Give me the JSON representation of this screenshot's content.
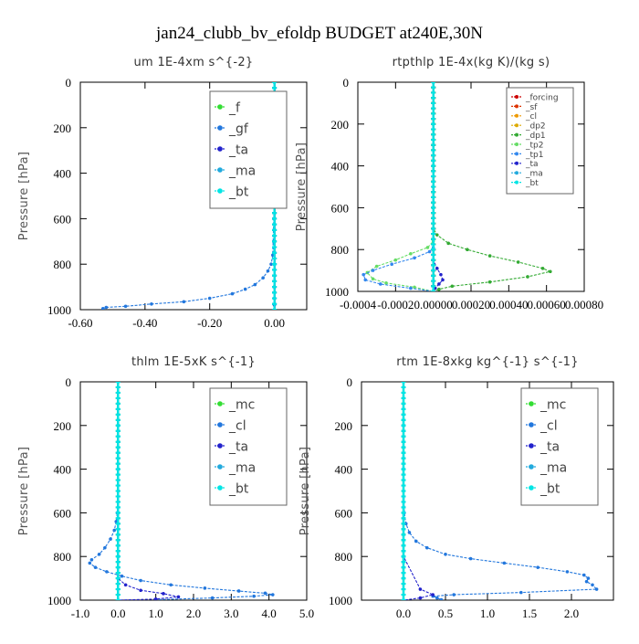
{
  "figure_title": "jan24_clubb_bv_efoldp  BUDGET at240E,30N",
  "chart_data": [
    {
      "type": "line",
      "title": "um   1E-4xm  s^{-2}",
      "ylabel": "Pressure [hPa]",
      "xlim": [
        -0.6,
        0.1
      ],
      "ylim": [
        1000,
        0
      ],
      "xticks": [
        -0.6,
        -0.4,
        -0.2,
        0.0
      ],
      "xtick_labels": [
        "-0.60",
        "-0.40",
        "-0.20",
        "0.00"
      ],
      "yticks": [
        0,
        200,
        400,
        600,
        800,
        1000
      ],
      "ytick_labels": [
        "0",
        "200",
        "400",
        "600",
        "800",
        "1000"
      ],
      "legend": "top-right",
      "legend_entries": [
        "_f",
        "_gf",
        "_ta",
        "_ma",
        "_bt"
      ],
      "series": [
        {
          "name": "_f",
          "color": "#33dd33",
          "x": [
            0,
            0,
            0,
            0,
            0,
            0,
            0,
            0,
            0,
            0,
            0
          ],
          "y": [
            0,
            100,
            200,
            300,
            400,
            500,
            600,
            700,
            800,
            900,
            1000
          ]
        },
        {
          "name": "_gf",
          "color": "#2277dd",
          "x": [
            0,
            0,
            0,
            -0.002,
            -0.005,
            -0.01,
            -0.02,
            -0.035,
            -0.06,
            -0.09,
            -0.13,
            -0.2,
            -0.28,
            -0.38,
            -0.46,
            -0.52,
            -0.53
          ],
          "y": [
            0,
            200,
            400,
            600,
            760,
            800,
            830,
            860,
            890,
            910,
            930,
            950,
            965,
            975,
            985,
            990,
            995
          ]
        },
        {
          "name": "_ta",
          "color": "#2222cc",
          "x": [
            0,
            0,
            0,
            0,
            0,
            0,
            0,
            0,
            0
          ],
          "y": [
            0,
            200,
            400,
            600,
            800,
            900,
            950,
            980,
            1000
          ]
        },
        {
          "name": "_ma",
          "color": "#22aadd",
          "x": [
            0,
            0,
            0,
            0,
            0,
            0
          ],
          "y": [
            0,
            200,
            400,
            600,
            800,
            1000
          ]
        },
        {
          "name": "_bt",
          "color": "#00e5e5",
          "x": [
            0,
            0,
            0,
            0,
            0,
            0
          ],
          "y": [
            0,
            200,
            400,
            600,
            800,
            1000
          ]
        }
      ]
    },
    {
      "type": "line",
      "title": "rtpthlp   1E-4x(kg K)/(kg s)",
      "ylabel": "Pressure [hPa]",
      "xlim": [
        -0.0004,
        0.0008
      ],
      "ylim": [
        1000,
        0
      ],
      "xticks": [
        -0.0004,
        -0.0002,
        0.0,
        0.0002,
        0.0004,
        0.0006,
        0.0008
      ],
      "xtick_labels": [
        "-0.0004",
        "-0.0002",
        "0.00000",
        "0.00020",
        "0.00040",
        "0.00060",
        "0.00080"
      ],
      "yticks": [
        0,
        200,
        400,
        600,
        800,
        1000
      ],
      "ytick_labels": [
        "0",
        "200",
        "400",
        "600",
        "800",
        "1000"
      ],
      "legend": "top-right",
      "legend_entries": [
        "_forcing",
        "_sf",
        "_cl",
        "_dp2",
        "_dp1",
        "_tp2",
        "_tp1",
        "_ta",
        "_ma",
        "_bt"
      ],
      "series": [
        {
          "name": "_forcing",
          "color": "#cc0000",
          "x": [
            0,
            0,
            0,
            0,
            0,
            0,
            0,
            0,
            0,
            0,
            0
          ],
          "y": [
            0,
            100,
            200,
            300,
            400,
            500,
            600,
            700,
            800,
            900,
            1000
          ]
        },
        {
          "name": "_sf",
          "color": "#dd3300",
          "x": [
            0,
            0,
            0,
            0,
            0,
            0
          ],
          "y": [
            0,
            200,
            400,
            600,
            800,
            1000
          ]
        },
        {
          "name": "_cl",
          "color": "#ee9900",
          "x": [
            0,
            0,
            0,
            0,
            0,
            0
          ],
          "y": [
            0,
            200,
            400,
            600,
            800,
            1000
          ]
        },
        {
          "name": "_dp2",
          "color": "#ddaa00",
          "x": [
            0,
            0,
            0,
            0,
            0,
            0
          ],
          "y": [
            0,
            200,
            400,
            600,
            800,
            1000
          ]
        },
        {
          "name": "_dp1",
          "color": "#33aa33",
          "x": [
            0,
            0,
            2e-05,
            8e-05,
            0.00018,
            0.0003,
            0.00045,
            0.00058,
            0.00062,
            0.0005,
            0.0003,
            0.0001,
            3e-05,
            0
          ],
          "y": [
            0,
            700,
            730,
            770,
            800,
            830,
            860,
            890,
            905,
            930,
            955,
            975,
            990,
            1000
          ]
        },
        {
          "name": "_tp2",
          "color": "#66dd66",
          "x": [
            0,
            0,
            -3e-05,
            -0.00012,
            -0.0002,
            -0.0003,
            -0.00035,
            -0.00032,
            -0.00025,
            -0.0001,
            0
          ],
          "y": [
            0,
            760,
            790,
            820,
            850,
            880,
            910,
            940,
            960,
            980,
            1000
          ]
        },
        {
          "name": "_tp1",
          "color": "#3388ee",
          "x": [
            0,
            0,
            -2e-05,
            -0.0001,
            -0.00022,
            -0.00032,
            -0.00037,
            -0.00036,
            -0.00028,
            -0.00012,
            0
          ],
          "y": [
            0,
            790,
            810,
            840,
            870,
            900,
            920,
            945,
            965,
            985,
            1000
          ]
        },
        {
          "name": "_ta",
          "color": "#2222cc",
          "x": [
            0,
            0,
            2e-05,
            4e-05,
            5e-05,
            3e-05,
            1e-05,
            0
          ],
          "y": [
            0,
            850,
            890,
            920,
            945,
            965,
            985,
            1000
          ]
        },
        {
          "name": "_ma",
          "color": "#22aadd",
          "x": [
            0,
            0,
            0,
            0,
            0,
            0
          ],
          "y": [
            0,
            200,
            400,
            600,
            800,
            1000
          ]
        },
        {
          "name": "_bt",
          "color": "#00e5e5",
          "x": [
            0,
            0,
            0,
            0,
            0,
            0
          ],
          "y": [
            0,
            200,
            400,
            600,
            800,
            1000
          ]
        }
      ]
    },
    {
      "type": "line",
      "title": "thlm   1E-5xK  s^{-1}",
      "ylabel": "Pressure [hPa]",
      "xlim": [
        -1.0,
        5.0
      ],
      "ylim": [
        1000,
        0
      ],
      "xticks": [
        -1.0,
        0.0,
        1.0,
        2.0,
        3.0,
        4.0,
        5.0
      ],
      "xtick_labels": [
        "-1.0",
        "0.0",
        "1.0",
        "2.0",
        "3.0",
        "4.0",
        "5.0"
      ],
      "yticks": [
        0,
        200,
        400,
        600,
        800,
        1000
      ],
      "ytick_labels": [
        "0",
        "200",
        "400",
        "600",
        "800",
        "1000"
      ],
      "legend": "top-right",
      "legend_entries": [
        "_mc",
        "_cl",
        "_ta",
        "_ma",
        "_bt"
      ],
      "series": [
        {
          "name": "_mc",
          "color": "#33dd33",
          "x": [
            0,
            0,
            0,
            0,
            0,
            0,
            0,
            0,
            0,
            0,
            0
          ],
          "y": [
            0,
            100,
            200,
            300,
            400,
            500,
            600,
            700,
            800,
            900,
            1000
          ]
        },
        {
          "name": "_cl",
          "color": "#2277dd",
          "x": [
            0,
            0,
            0,
            -0.02,
            -0.05,
            -0.1,
            -0.2,
            -0.35,
            -0.5,
            -0.7,
            -0.75,
            -0.6,
            -0.3,
            0.1,
            0.6,
            1.4,
            2.3,
            3.2,
            3.9,
            4.1,
            3.6,
            2.5,
            1.0
          ],
          "y": [
            0,
            200,
            400,
            600,
            640,
            680,
            720,
            760,
            790,
            815,
            830,
            850,
            870,
            890,
            910,
            930,
            945,
            958,
            968,
            975,
            982,
            990,
            998
          ]
        },
        {
          "name": "_ta",
          "color": "#2222cc",
          "x": [
            0,
            0,
            0,
            0,
            0,
            0,
            0.2,
            0.6,
            1.2,
            1.6,
            1.0,
            0
          ],
          "y": [
            0,
            200,
            400,
            600,
            800,
            900,
            930,
            955,
            970,
            985,
            995,
            1000
          ]
        },
        {
          "name": "_ma",
          "color": "#22aadd",
          "x": [
            0,
            0,
            0,
            0,
            0,
            0
          ],
          "y": [
            0,
            200,
            400,
            600,
            800,
            1000
          ]
        },
        {
          "name": "_bt",
          "color": "#00e5e5",
          "x": [
            0,
            0,
            0,
            0,
            0,
            0
          ],
          "y": [
            0,
            200,
            400,
            600,
            800,
            1000
          ]
        }
      ]
    },
    {
      "type": "line",
      "title": "rtm   1E-8xkg  kg^{-1} s^{-1}",
      "ylabel": "Pressure [hPa]",
      "xlim": [
        -0.5,
        2.5
      ],
      "ylim": [
        1000,
        0
      ],
      "xticks": [
        0.0,
        0.5,
        1.0,
        1.5,
        2.0
      ],
      "xtick_labels": [
        "0.0",
        "0.5",
        "1.0",
        "1.5",
        "2.0"
      ],
      "yticks": [
        0,
        200,
        400,
        600,
        800,
        1000
      ],
      "ytick_labels": [
        "0",
        "200",
        "400",
        "600",
        "800",
        "1000"
      ],
      "legend": "top-right",
      "legend_entries": [
        "_mc",
        "_cl",
        "_ta",
        "_ma",
        "_bt"
      ],
      "series": [
        {
          "name": "_mc",
          "color": "#33dd33",
          "x": [
            0,
            0,
            0,
            0,
            0,
            0,
            0,
            0,
            0,
            0,
            0
          ],
          "y": [
            0,
            100,
            200,
            300,
            400,
            500,
            600,
            700,
            800,
            900,
            1000
          ]
        },
        {
          "name": "_cl",
          "color": "#2277dd",
          "x": [
            0,
            0,
            0,
            0.01,
            0.03,
            0.07,
            0.15,
            0.28,
            0.5,
            0.8,
            1.2,
            1.6,
            1.95,
            2.15,
            2.2,
            2.18,
            2.25,
            2.3,
            1.4,
            0.6,
            0.35,
            0.4,
            0.45
          ],
          "y": [
            0,
            200,
            400,
            600,
            650,
            690,
            730,
            760,
            790,
            810,
            830,
            850,
            870,
            885,
            900,
            915,
            930,
            950,
            965,
            975,
            982,
            990,
            998
          ]
        },
        {
          "name": "_ta",
          "color": "#2222cc",
          "x": [
            0,
            0,
            0,
            0,
            0,
            0.2,
            0.35,
            0.2,
            0
          ],
          "y": [
            0,
            200,
            400,
            600,
            800,
            950,
            975,
            990,
            1000
          ]
        },
        {
          "name": "_ma",
          "color": "#22aadd",
          "x": [
            0,
            0,
            0,
            0,
            0,
            0
          ],
          "y": [
            0,
            200,
            400,
            600,
            800,
            1000
          ]
        },
        {
          "name": "_bt",
          "color": "#00e5e5",
          "x": [
            0,
            0,
            0,
            0,
            0,
            0
          ],
          "y": [
            0,
            200,
            400,
            600,
            800,
            1000
          ]
        }
      ]
    }
  ]
}
